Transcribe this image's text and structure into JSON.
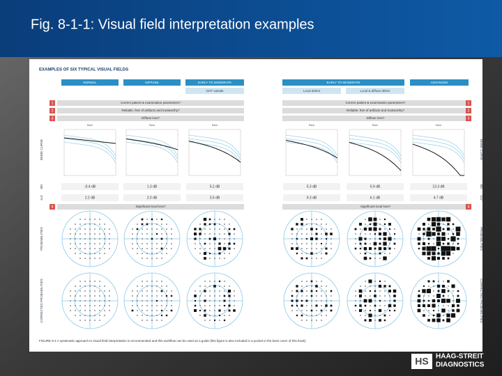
{
  "header": {
    "title": "Fig. 8-1-1: Visual field interpretation examples"
  },
  "figure": {
    "heading": "EXAMPLES OF SIX TYPICAL VISUAL FIELDS",
    "columns": [
      "NORMAL",
      "DIFFUSE",
      "EARLY TO MODERATE",
      "EARLY TO MODERATE",
      "ADVANCED"
    ],
    "sublabels": [
      "GHT outside",
      "Local defect",
      "Local & diffuse defect"
    ],
    "steps": [
      {
        "number": "1",
        "text": "Correct patient & examination parameters?"
      },
      {
        "number": "2",
        "text": "Reliable, free of artifacts and trustworthy?"
      },
      {
        "number": "3",
        "text": "Diffuse loss?"
      },
      {
        "number": "4",
        "text": "Significant local loss?"
      }
    ],
    "rank_label": "Rank",
    "side_labels": {
      "bebie": "BEBIE CURVE",
      "md": "MD",
      "slv": "sLV",
      "probabilities": "PROBABILITIES",
      "corrected": "CORRECTED PROBABILITIES"
    },
    "md": [
      "-0.4 dB",
      "1.3 dB",
      "5.2 dB",
      "5.3 dB",
      "5.9 dB",
      "13.3 dB"
    ],
    "slv": [
      "2.2 dB",
      "2.0 dB",
      "3.5 dB",
      "9.3 dB",
      "6.1 dB",
      "4.7 dB"
    ],
    "caption": "FIGURE 8-1 A systematic approach to visual field interpretation is recommended and this workflow can be used as a guide (this figure is also included in a pocket in the back cover of this book)."
  },
  "logo": {
    "mark": "HS",
    "line1": "HAAG-STREIT",
    "line2": "DIAGNOSTICS"
  }
}
